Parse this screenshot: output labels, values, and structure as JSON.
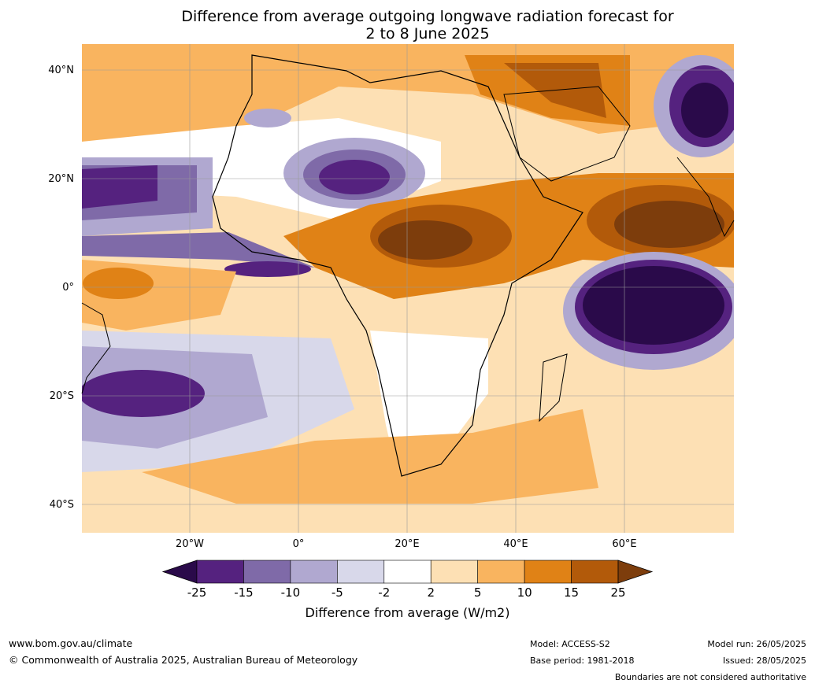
{
  "title_line1": "Difference from average outgoing longwave radiation forecast for",
  "title_line2": "2 to 8 June 2025",
  "lat_labels": [
    "40°N",
    "20°N",
    "0°",
    "20°S",
    "40°S"
  ],
  "lon_labels": [
    "20°W",
    "0°",
    "20°E",
    "40°E",
    "60°E"
  ],
  "colorbar": {
    "ticks": [
      "-25",
      "-15",
      "-10",
      "-5",
      "-2",
      "2",
      "5",
      "10",
      "15",
      "25"
    ],
    "colors": [
      "#2a0a4a",
      "#55227f",
      "#7f6aa8",
      "#b0a8d0",
      "#d8d8ea",
      "#ffffff",
      "#fde0b4",
      "#f9b45f",
      "#e08216",
      "#b25a0a",
      "#7d3d0c"
    ],
    "title": "Difference from average (W/m2)"
  },
  "footer": {
    "website": "www.bom.gov.au/climate",
    "copyright": "© Commonwealth of Australia 2025, Australian Bureau of Meteorology",
    "model": "Model: ACCESS-S2",
    "base_period": "Base period: 1981-2018",
    "model_run": "Model run: 26/05/2025",
    "issued": "Issued: 28/05/2025",
    "disclaimer": "Boundaries are not considered authoritative"
  }
}
